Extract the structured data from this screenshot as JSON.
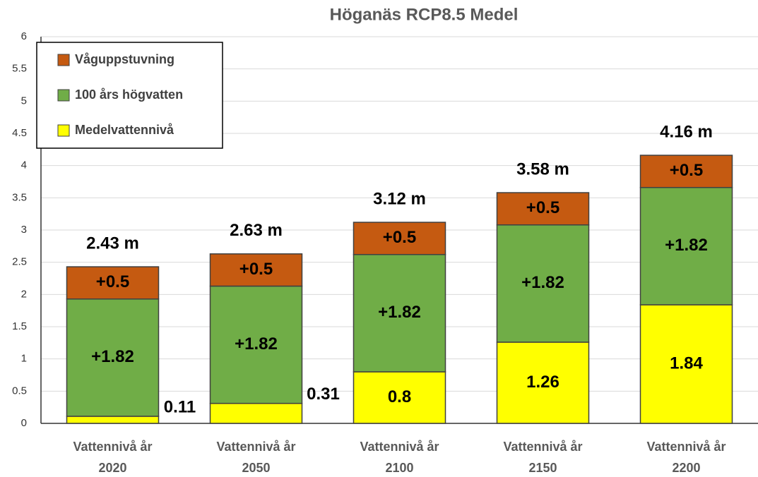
{
  "chart_data": {
    "type": "stacked_bar",
    "title": "Höganäs RCP8.5 Medel",
    "categories": [
      "Vattennivå år 2020",
      "Vattennivå år 2050",
      "Vattennivå år 2100",
      "Vattennivå år 2150",
      "Vattennivå år 2200"
    ],
    "series": [
      {
        "name": "Medelvattennivå",
        "color": "#ffff00",
        "values": [
          0.11,
          0.31,
          0.8,
          1.26,
          1.84
        ]
      },
      {
        "name": "100 års högvatten",
        "color": "#70ad47",
        "values": [
          1.82,
          1.82,
          1.82,
          1.82,
          1.82
        ],
        "value_labels": [
          "+1.82",
          "+1.82",
          "+1.82",
          "+1.82",
          "+1.82"
        ]
      },
      {
        "name": "Våguppstuvning",
        "color": "#c55a11",
        "values": [
          0.5,
          0.5,
          0.5,
          0.5,
          0.5
        ],
        "value_labels": [
          "+0.5",
          "+0.5",
          "+0.5",
          "+0.5",
          "+0.5"
        ]
      }
    ],
    "total_labels": [
      "2.43 m",
      "2.63 m",
      "3.12 m",
      "3.58 m",
      "4.16 m"
    ],
    "ylim": [
      0,
      6
    ],
    "yticks": [
      0,
      0.5,
      1,
      1.5,
      2,
      2.5,
      3,
      3.5,
      4,
      4.5,
      5,
      5.5,
      6
    ],
    "grid": true,
    "legend": "top-left"
  }
}
